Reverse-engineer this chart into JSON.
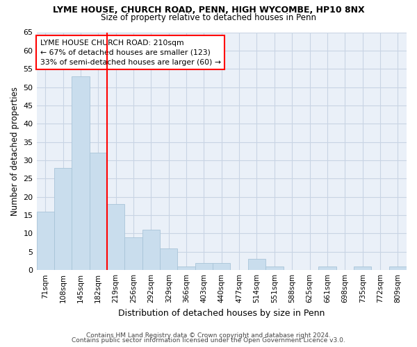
{
  "title1": "LYME HOUSE, CHURCH ROAD, PENN, HIGH WYCOMBE, HP10 8NX",
  "title2": "Size of property relative to detached houses in Penn",
  "xlabel": "Distribution of detached houses by size in Penn",
  "ylabel": "Number of detached properties",
  "categories": [
    "71sqm",
    "108sqm",
    "145sqm",
    "182sqm",
    "219sqm",
    "256sqm",
    "292sqm",
    "329sqm",
    "366sqm",
    "403sqm",
    "440sqm",
    "477sqm",
    "514sqm",
    "551sqm",
    "588sqm",
    "625sqm",
    "661sqm",
    "698sqm",
    "735sqm",
    "772sqm",
    "809sqm"
  ],
  "values": [
    16,
    28,
    53,
    32,
    18,
    9,
    11,
    6,
    1,
    2,
    2,
    0,
    3,
    1,
    0,
    0,
    1,
    0,
    1,
    0,
    1
  ],
  "bar_color": "#c9dded",
  "bar_edge_color": "#a8c4d8",
  "red_line_index": 3.5,
  "annotation_line1": "LYME HOUSE CHURCH ROAD: 210sqm",
  "annotation_line2": "← 67% of detached houses are smaller (123)",
  "annotation_line3": "33% of semi-detached houses are larger (60) →",
  "ylim": [
    0,
    65
  ],
  "yticks": [
    0,
    5,
    10,
    15,
    20,
    25,
    30,
    35,
    40,
    45,
    50,
    55,
    60,
    65
  ],
  "footer1": "Contains HM Land Registry data © Crown copyright and database right 2024.",
  "footer2": "Contains public sector information licensed under the Open Government Licence v3.0.",
  "bg_color": "#ffffff",
  "plot_bg_color": "#eaf0f8",
  "grid_color": "#c8d4e4"
}
